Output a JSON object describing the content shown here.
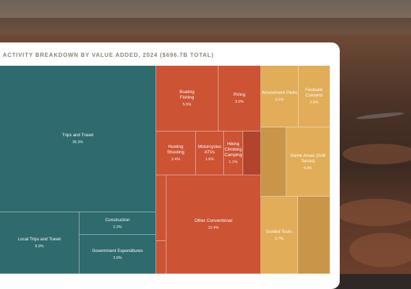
{
  "chart_data": {
    "type": "treemap",
    "title": "ACTIVITY BREAKDOWN BY VALUE ADDED, 2024 ($696.7B TOTAL)",
    "colors": {
      "teal": "#2e6a6e",
      "orange": "#cc5334",
      "gold": "#e1ad58"
    },
    "cells": {
      "trips_travel": {
        "label": "Trips and Travel",
        "value": "36.3%"
      },
      "local_trips": {
        "label": "Local Trips and Travel",
        "value": "8.9%"
      },
      "construction": {
        "label": "Construction",
        "value": "2.3%"
      },
      "gov_exp": {
        "label": "Government Expenditures",
        "value": "3.9%"
      },
      "boating": {
        "label": "Boating\nFishing",
        "value": "5.5%"
      },
      "rving": {
        "label": "RVing",
        "value": "3.9%"
      },
      "hunting": {
        "label": "Hunting\nShooting",
        "value": "2.4%"
      },
      "motorcycles": {
        "label": "Motorcycles\nATVs",
        "value": "1.6%"
      },
      "hiking": {
        "label": "Hiking\nClimbing\nCamping",
        "value": "1.1%"
      },
      "other_conv": {
        "label": "Other Conventional",
        "value": "12.4%"
      },
      "amusement": {
        "label": "Amusement Parks",
        "value": "3.1%"
      },
      "festivals": {
        "label": "Festivals\nConcerts",
        "value": "2.6%"
      },
      "game_areas": {
        "label": "Game Areas (Golf\nTennis)",
        "value": "4.0%"
      },
      "guided_tours": {
        "label": "Guided Tours",
        "value": "3.7%"
      }
    }
  }
}
